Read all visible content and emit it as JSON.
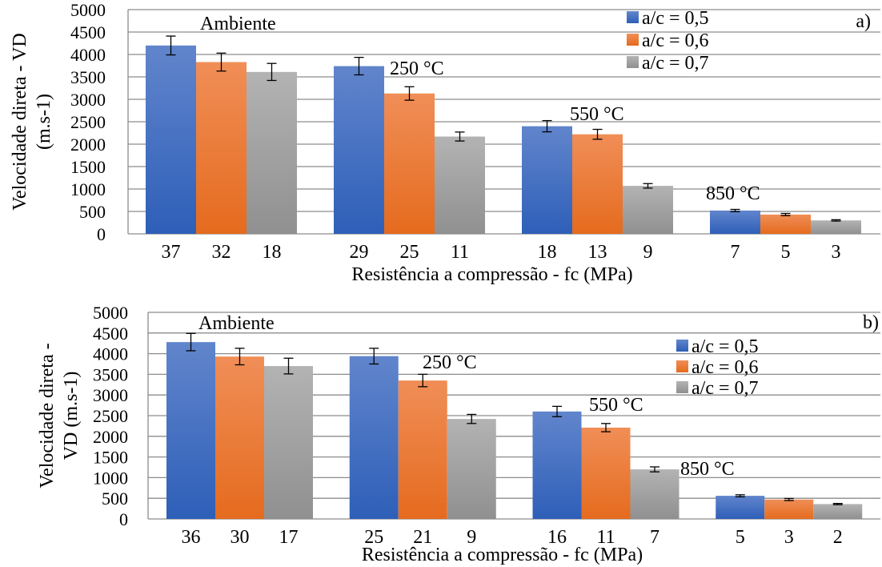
{
  "chart_data": [
    {
      "type": "bar",
      "panel_label": "a)",
      "xlabel": "Resistência a compressão - fc (MPa)",
      "ylabel_lines": [
        "Velocidade direta - VD",
        "(m.s-1)"
      ],
      "ylim": [
        0,
        5000
      ],
      "yticks": [
        0,
        500,
        1000,
        1500,
        2000,
        2500,
        3000,
        3500,
        4000,
        4500,
        5000
      ],
      "grid": true,
      "legend_position": "top-right",
      "groups": [
        "Ambiente",
        "250 °C",
        "550 °C",
        "850 °C"
      ],
      "categories": [
        [
          "37",
          "32",
          "18"
        ],
        [
          "29",
          "25",
          "11"
        ],
        [
          "18",
          "13",
          "9"
        ],
        [
          "7",
          "5",
          "3"
        ]
      ],
      "series": [
        {
          "name": "a/c = 0,5",
          "color": "#4472c4",
          "values": [
            4200,
            3740,
            2400,
            520
          ],
          "errors": [
            210,
            195,
            125,
            25
          ]
        },
        {
          "name": "a/c = 0,6",
          "color": "#ed7d31",
          "values": [
            3830,
            3130,
            2220,
            430
          ],
          "errors": [
            200,
            150,
            110,
            25
          ]
        },
        {
          "name": "a/c = 0,7",
          "color": "#a5a5a5",
          "values": [
            3610,
            2170,
            1070,
            300
          ],
          "errors": [
            190,
            100,
            50,
            15
          ]
        }
      ]
    },
    {
      "type": "bar",
      "panel_label": "b)",
      "xlabel": "Resistência a compressão - fc (MPa)",
      "ylabel_lines": [
        "Velocidade direta -",
        "VD  (m.s-1)"
      ],
      "ylim": [
        0,
        5000
      ],
      "yticks": [
        0,
        500,
        1000,
        1500,
        2000,
        2500,
        3000,
        3500,
        4000,
        4500,
        5000
      ],
      "grid": true,
      "legend_position": "top-right",
      "groups": [
        "Ambiente",
        "250 °C",
        "550 °C",
        "850 °C"
      ],
      "categories": [
        [
          "36",
          "30",
          "17"
        ],
        [
          "25",
          "21",
          "9"
        ],
        [
          "16",
          "11",
          "7"
        ],
        [
          "5",
          "3",
          "2"
        ]
      ],
      "series": [
        {
          "name": "a/c = 0,5",
          "color": "#4472c4",
          "values": [
            4280,
            3940,
            2600,
            560
          ],
          "errors": [
            210,
            190,
            125,
            25
          ]
        },
        {
          "name": "a/c = 0,6",
          "color": "#ed7d31",
          "values": [
            3930,
            3350,
            2210,
            470
          ],
          "errors": [
            200,
            150,
            100,
            25
          ]
        },
        {
          "name": "a/c = 0,7",
          "color": "#a5a5a5",
          "values": [
            3700,
            2420,
            1200,
            360
          ],
          "errors": [
            190,
            110,
            60,
            15
          ]
        }
      ]
    }
  ]
}
